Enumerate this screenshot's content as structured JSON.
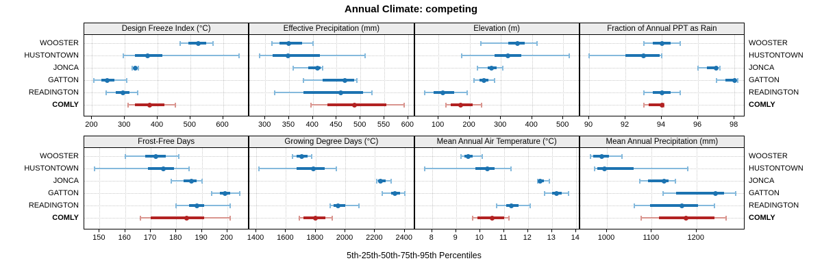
{
  "title": "Annual Climate: competing",
  "xlabel": "5th-25th-50th-75th-95th Percentiles",
  "sites": [
    "WOOSTER",
    "HUSTONTOWN",
    "JONCA",
    "GATTON",
    "READINGTON",
    "COMLY"
  ],
  "highlight_site": "COMLY",
  "colors": {
    "blue_main": "#1c73b1",
    "blue_light": "#84b9dc",
    "red_main": "#b22222",
    "red_light": "#d9948e",
    "grid": "#c9c9c9",
    "header_bg": "#ececec",
    "border": "#000000"
  },
  "chart_data": {
    "type": "dot-whisker-trellis",
    "layout": "2 rows x 4 columns, shared site rows, whisker = 5th-95th pct (light), bar = 25th-75th pct (solid), dot = median",
    "percentiles": [
      5,
      25,
      50,
      75,
      95
    ],
    "panels": [
      {
        "title": "Design Freeze Index (°C)",
        "grid_row": 0,
        "domain": [
          176,
          681
        ],
        "ticks": [
          200,
          300,
          400,
          500,
          600
        ],
        "values": {
          "WOOSTER": [
            470,
            495,
            525,
            548,
            570
          ],
          "HUSTONTOWN": [
            295,
            330,
            370,
            415,
            650
          ],
          "JONCA": [
            322,
            327,
            331,
            336,
            342
          ],
          "GATTON": [
            205,
            228,
            247,
            268,
            305
          ],
          "READINGTON": [
            243,
            272,
            295,
            315,
            340
          ],
          "COMLY": [
            310,
            330,
            375,
            420,
            455
          ]
        }
      },
      {
        "title": "Effective Precipitation (mm)",
        "grid_row": 0,
        "domain": [
          267,
          614
        ],
        "ticks": [
          300,
          350,
          400,
          450,
          500,
          550,
          600
        ],
        "values": {
          "WOOSTER": [
            314,
            330,
            350,
            378,
            401
          ],
          "HUSTONTOWN": [
            288,
            315,
            348,
            415,
            509
          ],
          "JONCA": [
            359,
            390,
            410,
            416,
            421
          ],
          "GATTON": [
            380,
            420,
            468,
            487,
            493
          ],
          "READINGTON": [
            320,
            380,
            459,
            505,
            524
          ],
          "COMLY": [
            396,
            430,
            488,
            555,
            592
          ]
        }
      },
      {
        "title": "Elevation (m)",
        "grid_row": 0,
        "domain": [
          24,
          554
        ],
        "ticks": [
          100,
          200,
          300,
          400,
          500
        ],
        "values": {
          "WOOSTER": [
            237,
            324,
            354,
            377,
            417
          ],
          "HUSTONTOWN": [
            175,
            280,
            322,
            365,
            519
          ],
          "JONCA": [
            226,
            257,
            271,
            286,
            306
          ],
          "GATTON": [
            215,
            231,
            246,
            260,
            279
          ],
          "READINGTON": [
            56,
            85,
            113,
            150,
            191
          ],
          "COMLY": [
            124,
            140,
            171,
            210,
            239
          ]
        }
      },
      {
        "title": "Fraction of Annual PPT as Rain",
        "grid_row": 0,
        "domain": [
          89.5,
          98.6
        ],
        "ticks": [
          90,
          92,
          94,
          96,
          98
        ],
        "values": {
          "WOOSTER": [
            93,
            93.5,
            94,
            94.5,
            95
          ],
          "HUSTONTOWN": [
            90,
            92,
            93,
            93.9,
            94
          ],
          "JONCA": [
            96,
            96.5,
            97,
            97.1,
            97.2
          ],
          "GATTON": [
            97,
            97.5,
            98,
            98.1,
            98.2
          ],
          "READINGTON": [
            93,
            93.5,
            94,
            94.5,
            95
          ],
          "COMLY": [
            93,
            93.3,
            94,
            94,
            94.1
          ]
        }
      },
      {
        "title": "Frost-Free Days",
        "grid_row": 1,
        "domain": [
          144,
          208.7
        ],
        "ticks": [
          150,
          160,
          170,
          180,
          190,
          200
        ],
        "values": {
          "WOOSTER": [
            160,
            168,
            172,
            176,
            181
          ],
          "HUSTONTOWN": [
            148,
            169,
            175,
            179,
            185
          ],
          "JONCA": [
            178,
            183,
            186,
            188,
            190
          ],
          "GATTON": [
            194,
            197,
            199,
            201,
            205
          ],
          "READINGTON": [
            180,
            185,
            188,
            191,
            201
          ],
          "COMLY": [
            166,
            170,
            184,
            191,
            201
          ]
        }
      },
      {
        "title": "Growing Degree Days (°C)",
        "grid_row": 1,
        "domain": [
          1355,
          2468
        ],
        "ticks": [
          1400,
          1600,
          1800,
          2000,
          2200,
          2400
        ],
        "values": {
          "WOOSTER": [
            1645,
            1670,
            1705,
            1745,
            1775
          ],
          "HUSTONTOWN": [
            1420,
            1670,
            1785,
            1860,
            1940
          ],
          "JONCA": [
            2210,
            2220,
            2235,
            2270,
            2310
          ],
          "GATTON": [
            2250,
            2310,
            2335,
            2370,
            2400
          ],
          "READINGTON": [
            1900,
            1920,
            1950,
            2000,
            2090
          ],
          "COMLY": [
            1690,
            1720,
            1800,
            1865,
            1910
          ]
        }
      },
      {
        "title": "Mean Annual Air Temperature (°C)",
        "grid_row": 1,
        "domain": [
          7.28,
          14.17
        ],
        "ticks": [
          8,
          9,
          10,
          11,
          12,
          13,
          14
        ],
        "values": {
          "WOOSTER": [
            9.2,
            9.35,
            9.5,
            9.7,
            10.1
          ],
          "HUSTONTOWN": [
            7.7,
            9.8,
            10.3,
            10.6,
            11.3
          ],
          "JONCA": [
            12.4,
            12.45,
            12.5,
            12.65,
            12.9
          ],
          "GATTON": [
            12.7,
            13.0,
            13.2,
            13.4,
            13.7
          ],
          "READINGTON": [
            10.7,
            11.1,
            11.3,
            11.6,
            12.1
          ],
          "COMLY": [
            9.7,
            9.9,
            10.5,
            11.0,
            11.2
          ]
        }
      },
      {
        "title": "Mean Annual Precipitation (mm)",
        "grid_row": 1,
        "domain": [
          940,
          1309
        ],
        "ticks": [
          1000,
          1100,
          1200
        ],
        "values": {
          "WOOSTER": [
            963,
            970,
            988,
            1005,
            1033
          ],
          "HUSTONTOWN": [
            973,
            978,
            995,
            1060,
            1180
          ],
          "JONCA": [
            1074,
            1092,
            1127,
            1138,
            1153
          ],
          "GATTON": [
            1125,
            1155,
            1243,
            1262,
            1287
          ],
          "READINGTON": [
            1061,
            1097,
            1168,
            1204,
            1240
          ],
          "COMLY": [
            1077,
            1116,
            1176,
            1240,
            1266
          ]
        }
      }
    ]
  }
}
